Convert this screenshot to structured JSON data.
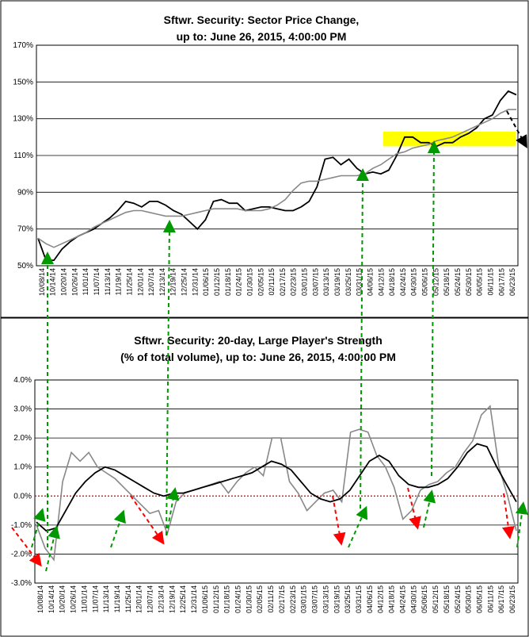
{
  "chart_data": [
    {
      "type": "line",
      "title_line1": "Sftwr. Security: Sector Price Change,",
      "title_line2": "up to: June 26, 2015, 4:00:00 PM",
      "ylim": [
        50,
        170
      ],
      "y_ticks": [
        "50%",
        "70%",
        "90%",
        "110%",
        "130%",
        "150%",
        "170%"
      ],
      "y_tick_values": [
        50,
        70,
        90,
        110,
        130,
        150,
        170
      ],
      "x_tick_labels": [
        "10/08/14",
        "10/14/14",
        "10/20/14",
        "10/26/14",
        "11/01/14",
        "11/07/14",
        "11/13/14",
        "11/19/14",
        "11/25/14",
        "12/01/14",
        "12/07/14",
        "12/13/14",
        "12/19/14",
        "12/25/14",
        "12/31/14",
        "01/06/15",
        "01/12/15",
        "01/18/15",
        "01/24/15",
        "01/30/15",
        "02/05/15",
        "02/11/15",
        "02/17/15",
        "02/23/15",
        "03/01/15",
        "03/07/15",
        "03/13/15",
        "03/19/15",
        "03/25/15",
        "03/31/15",
        "04/06/15",
        "04/12/15",
        "04/18/15",
        "04/24/15",
        "04/30/15",
        "05/06/15",
        "05/12/15",
        "05/18/15",
        "05/24/15",
        "05/30/15",
        "06/05/15",
        "06/11/15",
        "06/17/15",
        "06/23/15"
      ],
      "grid": true,
      "series": [
        {
          "color": "#000000",
          "values": [
            65,
            53,
            53,
            59,
            63,
            66,
            68,
            70,
            73,
            76,
            80,
            85,
            84,
            82,
            85,
            85,
            83,
            80,
            78,
            74,
            70,
            75,
            85,
            86,
            84,
            84,
            80,
            81,
            82,
            82,
            81,
            80,
            80,
            82,
            85,
            93,
            108,
            109,
            105,
            108,
            103,
            100,
            101,
            100,
            102,
            110,
            120,
            120,
            117,
            117,
            115,
            117,
            117,
            120,
            122,
            125,
            130,
            132,
            140,
            145,
            143
          ]
        },
        {
          "color": "#888888",
          "values": [
            65,
            62,
            60,
            62,
            64,
            66,
            68,
            71,
            73,
            75,
            77,
            79,
            80,
            80,
            79,
            78,
            77,
            77,
            77,
            78,
            79,
            80,
            81,
            81,
            81,
            81,
            80,
            80,
            80,
            81,
            83,
            86,
            91,
            95,
            96,
            96,
            97,
            98,
            99,
            99,
            99,
            100,
            103,
            105,
            108,
            111,
            112,
            114,
            115,
            116,
            118,
            119,
            120,
            122,
            124,
            126,
            128,
            130,
            133,
            135,
            135
          ]
        }
      ],
      "highlight_y_range": [
        115,
        123
      ],
      "highlight_color": "#FFFF00"
    },
    {
      "type": "line",
      "title_line1": "Sftwr. Security: 20-day, Large Player's Strength",
      "title_line2": "(% of total volume), up to: June 26, 2015, 4:00:00 PM",
      "ylim": [
        -3.0,
        4.0
      ],
      "y_ticks": [
        "-3.0%",
        "-2.0%",
        "-1.0%",
        "0.0%",
        "1.0%",
        "2.0%",
        "3.0%",
        "4.0%"
      ],
      "y_tick_values": [
        -3,
        -2,
        -1,
        0,
        1,
        2,
        3,
        4
      ],
      "x_tick_labels": [
        "10/08/14",
        "10/14/14",
        "10/20/14",
        "10/26/14",
        "11/01/14",
        "11/07/14",
        "11/13/14",
        "11/19/14",
        "11/25/14",
        "12/01/14",
        "12/07/14",
        "12/13/14",
        "12/19/14",
        "12/25/14",
        "12/31/14",
        "01/06/15",
        "01/12/15",
        "01/18/15",
        "01/24/15",
        "01/30/15",
        "02/05/15",
        "02/11/15",
        "02/17/15",
        "02/23/15",
        "03/01/15",
        "03/07/15",
        "03/13/15",
        "03/19/15",
        "03/25/15",
        "03/31/15",
        "04/06/15",
        "04/12/15",
        "04/18/15",
        "04/24/15",
        "04/30/15",
        "05/06/15",
        "05/12/15",
        "05/18/15",
        "05/24/15",
        "05/30/15",
        "06/05/15",
        "06/11/15",
        "06/17/15",
        "06/23/15"
      ],
      "grid": true,
      "zero_line_color": "#CC0000",
      "series": [
        {
          "color": "#888888",
          "values": [
            -1.0,
            -1.8,
            -2.2,
            0.5,
            1.5,
            1.2,
            1.5,
            1.0,
            0.8,
            0.6,
            0.3,
            0.0,
            -0.3,
            -0.6,
            -0.5,
            -1.3,
            -0.2,
            0.1,
            0.2,
            0.3,
            0.4,
            0.5,
            0.1,
            0.5,
            0.8,
            1.0,
            0.7,
            2.0,
            2.0,
            0.5,
            0.1,
            -0.5,
            -0.2,
            0.1,
            0.2,
            -0.2,
            2.2,
            2.3,
            2.2,
            1.4,
            1.0,
            0.3,
            -0.8,
            -0.5,
            0.2,
            0.4,
            0.5,
            0.8,
            1.0,
            1.5,
            1.9,
            2.8,
            3.1,
            1.0,
            0.0,
            -1.2
          ]
        },
        {
          "color": "#000000",
          "values": [
            -0.9,
            -1.2,
            -1.1,
            -0.5,
            0.1,
            0.5,
            0.8,
            1.0,
            0.9,
            0.7,
            0.5,
            0.3,
            0.1,
            0.0,
            0.1,
            0.1,
            0.2,
            0.3,
            0.4,
            0.5,
            0.6,
            0.7,
            0.8,
            1.0,
            1.2,
            1.1,
            0.9,
            0.5,
            0.1,
            -0.1,
            -0.2,
            -0.1,
            0.2,
            0.7,
            1.2,
            1.4,
            1.2,
            0.7,
            0.4,
            0.3,
            0.3,
            0.4,
            0.6,
            1.0,
            1.5,
            1.8,
            1.7,
            1.0,
            0.4,
            -0.2
          ]
        }
      ]
    }
  ],
  "arrows": {
    "red_color": "#FF0000",
    "green_color": "#009900",
    "black_color": "#000000"
  }
}
